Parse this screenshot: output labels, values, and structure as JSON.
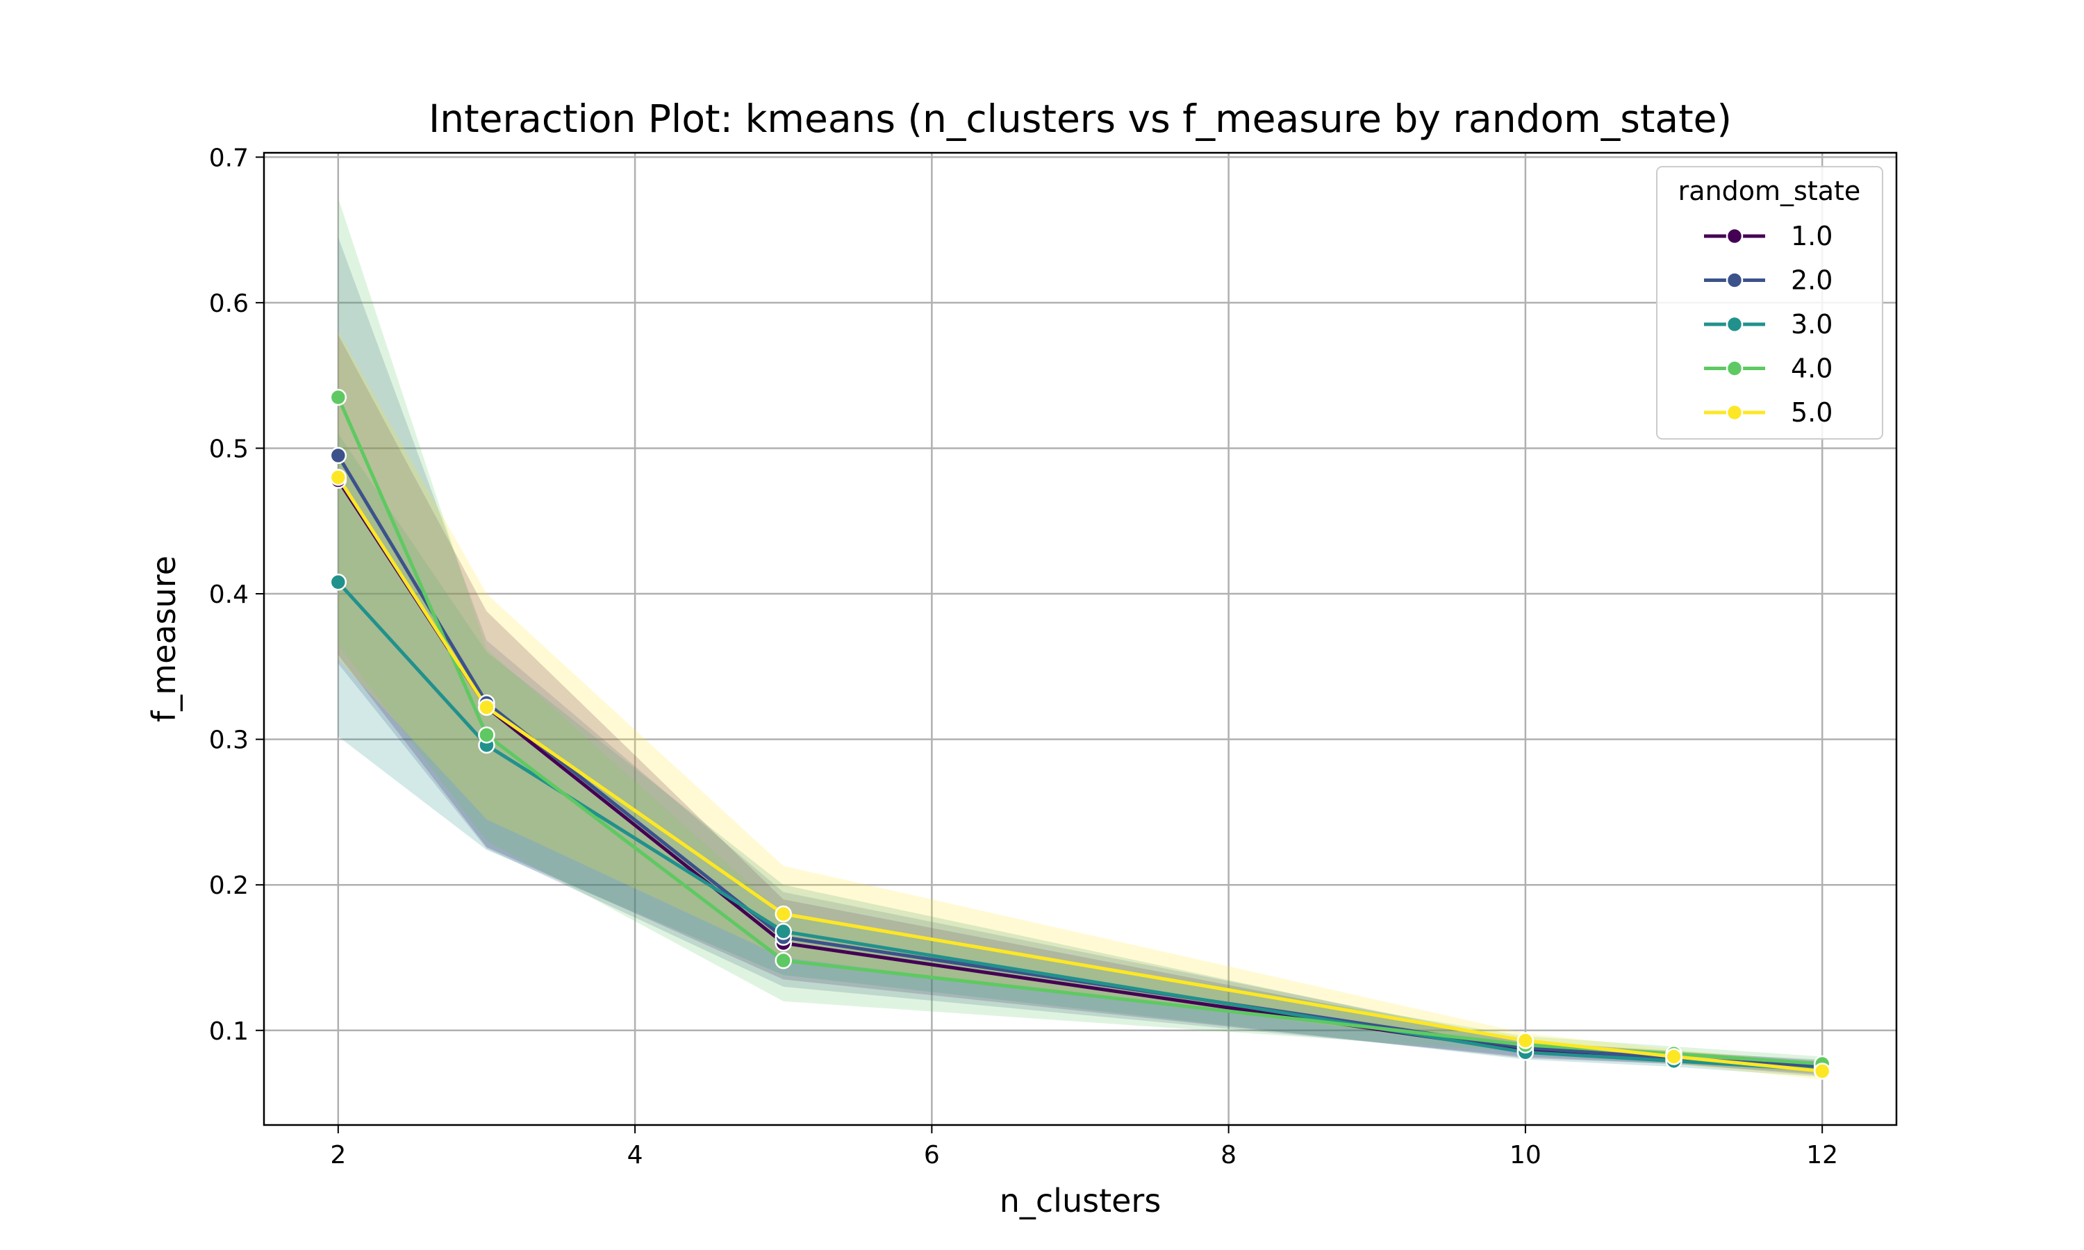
{
  "chart_data": {
    "type": "line",
    "title": "Interaction Plot: kmeans (n_clusters vs f_measure by random_state)",
    "xlabel": "n_clusters",
    "ylabel": "f_measure",
    "x": [
      2,
      3,
      5,
      10,
      11,
      12
    ],
    "xlim": [
      1.5,
      12.5
    ],
    "ylim": [
      0.035,
      0.703
    ],
    "xticks": [
      2,
      4,
      6,
      8,
      10,
      12
    ],
    "yticks": [
      0.1,
      0.2,
      0.3,
      0.4,
      0.5,
      0.6,
      0.7
    ],
    "xtick_labels": [
      "2",
      "4",
      "6",
      "8",
      "10",
      "12"
    ],
    "ytick_labels": [
      "0.1",
      "0.2",
      "0.3",
      "0.4",
      "0.5",
      "0.6",
      "0.7"
    ],
    "grid": true,
    "legend": {
      "title": "random_state",
      "placement": "top-right"
    },
    "series": [
      {
        "name": "1.0",
        "color": "#440154",
        "values": [
          0.478,
          0.322,
          0.16,
          0.086,
          0.081,
          0.074
        ],
        "lower": [
          0.358,
          0.226,
          0.135,
          0.081,
          0.077,
          0.069
        ],
        "upper": [
          0.578,
          0.388,
          0.19,
          0.092,
          0.086,
          0.079
        ]
      },
      {
        "name": "2.0",
        "color": "#3b528b",
        "values": [
          0.495,
          0.325,
          0.164,
          0.088,
          0.081,
          0.075
        ],
        "lower": [
          0.352,
          0.225,
          0.13,
          0.082,
          0.077,
          0.07
        ],
        "upper": [
          0.645,
          0.368,
          0.195,
          0.093,
          0.085,
          0.08
        ]
      },
      {
        "name": "3.0",
        "color": "#21918c",
        "values": [
          0.408,
          0.296,
          0.168,
          0.085,
          0.079,
          0.073
        ],
        "lower": [
          0.302,
          0.224,
          0.138,
          0.08,
          0.075,
          0.068
        ],
        "upper": [
          0.51,
          0.36,
          0.2,
          0.091,
          0.084,
          0.078
        ]
      },
      {
        "name": "4.0",
        "color": "#5ec962",
        "values": [
          0.535,
          0.303,
          0.148,
          0.09,
          0.084,
          0.077
        ],
        "lower": [
          0.365,
          0.23,
          0.12,
          0.085,
          0.078,
          0.071
        ],
        "upper": [
          0.672,
          0.362,
          0.18,
          0.096,
          0.089,
          0.082
        ]
      },
      {
        "name": "5.0",
        "color": "#fde725",
        "values": [
          0.48,
          0.322,
          0.18,
          0.093,
          0.082,
          0.072
        ],
        "lower": [
          0.355,
          0.245,
          0.15,
          0.087,
          0.077,
          0.066
        ],
        "upper": [
          0.58,
          0.4,
          0.213,
          0.098,
          0.087,
          0.077
        ]
      }
    ]
  }
}
